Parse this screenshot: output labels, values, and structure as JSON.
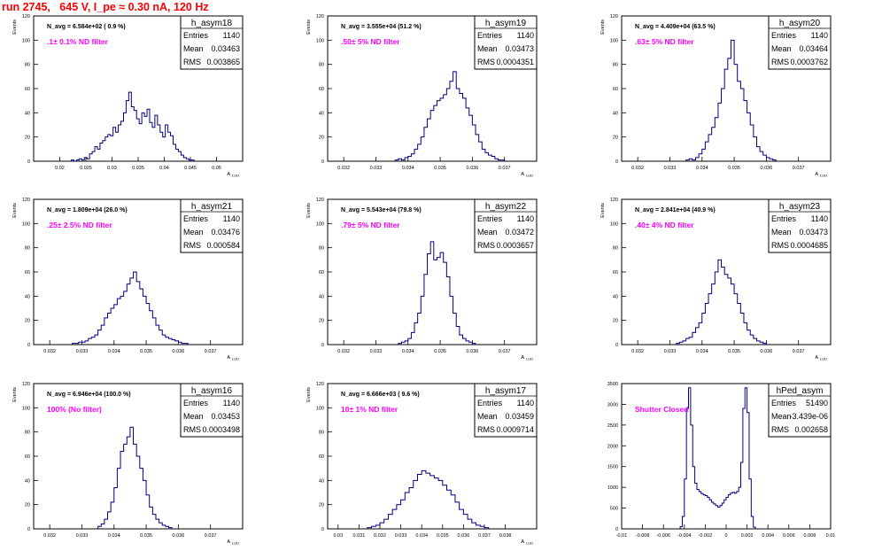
{
  "title": "run 2745,   645 V, I_pe ≈ 0.30 nA, 120 Hz",
  "stat_labels": {
    "entries": "Entries",
    "mean": "Mean",
    "rms": "RMS"
  },
  "chart_data": [
    {
      "type": "histogram",
      "name": "h_asym18",
      "navg": "N_avg = 6.584e+02 ( 0.9 %)",
      "filter": ".1± 0.1% ND filter",
      "entries": "1140",
      "mean": "0.03463",
      "rms": "0.003865",
      "xlim": [
        0.015,
        0.055
      ],
      "ylim": [
        0,
        120
      ],
      "xticks": [
        0.02,
        0.025,
        0.03,
        0.035,
        0.04,
        0.045,
        0.05
      ],
      "xticklabels": [
        "0.02",
        "0.025",
        "0.03",
        "0.035",
        "0.04",
        "0.045",
        "0.05"
      ],
      "yticks": [
        0,
        20,
        40,
        60,
        80,
        100,
        120
      ],
      "xlabel": "A_LUD",
      "ylabel": "Events",
      "x_start": 0.0222,
      "bin_width": 0.0005,
      "counts": [
        1,
        0,
        1,
        2,
        1,
        3,
        2,
        6,
        8,
        12,
        10,
        15,
        17,
        20,
        22,
        21,
        28,
        24,
        30,
        33,
        40,
        50,
        57,
        45,
        42,
        35,
        31,
        40,
        37,
        43,
        32,
        28,
        38,
        30,
        24,
        20,
        30,
        24,
        21,
        14,
        10,
        8,
        5,
        3,
        2,
        1,
        1
      ]
    },
    {
      "type": "histogram",
      "name": "h_asym19",
      "navg": "N_avg = 3.555e+04 (51.2 %)",
      "filter": ".50± 5% ND filter",
      "entries": "1140",
      "mean": "0.03473",
      "rms": "0.0004351",
      "xlim": [
        0.0315,
        0.038
      ],
      "ylim": [
        0,
        120
      ],
      "xticks": [
        0.032,
        0.033,
        0.034,
        0.035,
        0.036,
        0.037
      ],
      "xticklabels": [
        "0.032",
        "0.033",
        "0.034",
        "0.035",
        "0.036",
        "0.037"
      ],
      "yticks": [
        0,
        20,
        40,
        60,
        80,
        100,
        120
      ],
      "xlabel": "A_LUD",
      "ylabel": "Events",
      "x_start": 0.0336,
      "bin_width": 0.0001,
      "counts": [
        1,
        2,
        1,
        3,
        4,
        6,
        10,
        14,
        20,
        28,
        35,
        42,
        46,
        50,
        52,
        55,
        60,
        66,
        74,
        60,
        56,
        52,
        44,
        38,
        30,
        22,
        16,
        10,
        7,
        5,
        4,
        2,
        1,
        1
      ]
    },
    {
      "type": "histogram",
      "name": "h_asym20",
      "navg": "N_avg = 4.409e+04 (63.5 %)",
      "filter": ".63± 5% ND filter",
      "entries": "1140",
      "mean": "0.03464",
      "rms": "0.0003762",
      "xlim": [
        0.0315,
        0.038
      ],
      "ylim": [
        0,
        120
      ],
      "xticks": [
        0.032,
        0.033,
        0.034,
        0.035,
        0.036,
        0.037
      ],
      "xticklabels": [
        "0.032",
        "0.033",
        "0.034",
        "0.035",
        "0.036",
        "0.037"
      ],
      "yticks": [
        0,
        20,
        40,
        60,
        80,
        100,
        120
      ],
      "xlabel": "A_LUD",
      "ylabel": "Events",
      "x_start": 0.0335,
      "bin_width": 0.0001,
      "counts": [
        1,
        2,
        1,
        3,
        6,
        10,
        16,
        22,
        28,
        36,
        48,
        60,
        76,
        85,
        100,
        80,
        66,
        60,
        50,
        40,
        30,
        20,
        12,
        8,
        5,
        3,
        2,
        1
      ]
    },
    {
      "type": "histogram",
      "name": "h_asym21",
      "navg": "N_avg = 1.809e+04 (26.0 %)",
      "filter": ".25± 2.5% ND filter",
      "entries": "1140",
      "mean": "0.03476",
      "rms": "0.000584",
      "xlim": [
        0.0315,
        0.038
      ],
      "ylim": [
        0,
        120
      ],
      "xticks": [
        0.032,
        0.033,
        0.034,
        0.035,
        0.036,
        0.037
      ],
      "xticklabels": [
        "0.032",
        "0.033",
        "0.034",
        "0.035",
        "0.036",
        "0.037"
      ],
      "yticks": [
        0,
        20,
        40,
        60,
        80,
        100,
        120
      ],
      "xlabel": "A_LUD",
      "ylabel": "Events",
      "x_start": 0.0327,
      "bin_width": 0.0001,
      "counts": [
        1,
        1,
        2,
        2,
        3,
        5,
        6,
        8,
        12,
        16,
        22,
        26,
        30,
        33,
        38,
        40,
        44,
        50,
        55,
        60,
        52,
        46,
        40,
        34,
        28,
        22,
        16,
        12,
        8,
        6,
        5,
        4,
        3,
        2,
        1,
        1
      ]
    },
    {
      "type": "histogram",
      "name": "h_asym22",
      "navg": "N_avg = 5.543e+04 (79.8 %)",
      "filter": ".79± 5% ND filter",
      "entries": "1140",
      "mean": "0.03472",
      "rms": "0.0003657",
      "xlim": [
        0.0315,
        0.038
      ],
      "ylim": [
        0,
        120
      ],
      "xticks": [
        0.032,
        0.033,
        0.034,
        0.035,
        0.036,
        0.037
      ],
      "xticklabels": [
        "0.032",
        "0.033",
        "0.034",
        "0.035",
        "0.036",
        "0.037"
      ],
      "yticks": [
        0,
        20,
        40,
        60,
        80,
        100,
        120
      ],
      "xlabel": "A_LUD",
      "ylabel": "Events",
      "x_start": 0.0337,
      "bin_width": 0.0001,
      "counts": [
        1,
        2,
        3,
        5,
        10,
        18,
        26,
        40,
        58,
        75,
        85,
        70,
        72,
        76,
        68,
        56,
        40,
        26,
        15,
        8,
        5,
        3,
        2,
        1
      ]
    },
    {
      "type": "histogram",
      "name": "h_asym23",
      "navg": "N_avg = 2.841e+04 (40.9 %)",
      "filter": ".40± 4% ND filter",
      "entries": "1140",
      "mean": "0.03473",
      "rms": "0.0004685",
      "xlim": [
        0.0315,
        0.038
      ],
      "ylim": [
        0,
        120
      ],
      "xticks": [
        0.032,
        0.033,
        0.034,
        0.035,
        0.036,
        0.037
      ],
      "xticklabels": [
        "0.032",
        "0.033",
        "0.034",
        "0.035",
        "0.036",
        "0.037"
      ],
      "yticks": [
        0,
        20,
        40,
        60,
        80,
        100,
        120
      ],
      "xlabel": "A_LUD",
      "ylabel": "Events",
      "x_start": 0.0332,
      "bin_width": 0.0001,
      "counts": [
        1,
        2,
        3,
        5,
        6,
        10,
        14,
        18,
        26,
        34,
        42,
        50,
        60,
        70,
        64,
        58,
        55,
        50,
        42,
        34,
        26,
        18,
        12,
        8,
        5,
        3,
        2,
        1
      ]
    },
    {
      "type": "histogram",
      "name": "h_asym16",
      "navg": "N_avg = 6.946e+04 (100.0 %)",
      "filter": "100% (No filter)",
      "entries": "1140",
      "mean": "0.03453",
      "rms": "0.0003498",
      "xlim": [
        0.0315,
        0.038
      ],
      "ylim": [
        0,
        120
      ],
      "xticks": [
        0.032,
        0.033,
        0.034,
        0.035,
        0.036,
        0.037
      ],
      "xticklabels": [
        "0.032",
        "0.033",
        "0.034",
        "0.035",
        "0.036",
        "0.037"
      ],
      "yticks": [
        0,
        20,
        40,
        60,
        80,
        100,
        120
      ],
      "xlabel": "A_LUD",
      "ylabel": "Events",
      "x_start": 0.0335,
      "bin_width": 0.0001,
      "counts": [
        2,
        4,
        8,
        14,
        22,
        34,
        50,
        64,
        70,
        76,
        84,
        70,
        60,
        50,
        40,
        28,
        18,
        12,
        8,
        5,
        3,
        2,
        1
      ]
    },
    {
      "type": "histogram",
      "name": "h_asym17",
      "navg": "N_avg = 6.666e+03 ( 9.6 %)",
      "filter": "10± 1% ND filter",
      "entries": "1140",
      "mean": "0.03459",
      "rms": "0.0009714",
      "xlim": [
        0.0295,
        0.0395
      ],
      "ylim": [
        0,
        120
      ],
      "xticks": [
        0.03,
        0.031,
        0.032,
        0.033,
        0.034,
        0.035,
        0.036,
        0.037,
        0.038
      ],
      "xticklabels": [
        "0.03",
        "0.031",
        "0.032",
        "0.033",
        "0.034",
        "0.035",
        "0.036",
        "0.037",
        "0.038"
      ],
      "yticks": [
        0,
        20,
        40,
        60,
        80,
        100,
        120
      ],
      "xlabel": "A_LUD",
      "ylabel": "Events",
      "x_start": 0.0314,
      "bin_width": 0.0002,
      "counts": [
        1,
        2,
        3,
        5,
        8,
        12,
        16,
        20,
        24,
        30,
        34,
        40,
        45,
        48,
        46,
        44,
        42,
        40,
        36,
        32,
        28,
        22,
        16,
        12,
        8,
        5,
        3,
        2,
        1
      ]
    },
    {
      "type": "histogram",
      "name": "hPed_asym",
      "navg": "",
      "filter": "Shutter Closed",
      "entries": "51490",
      "mean": "-3.439e-06",
      "rms": "0.002658",
      "xlim": [
        -0.01,
        0.01
      ],
      "ylim": [
        0,
        3500
      ],
      "xticks": [
        -0.01,
        -0.008,
        -0.006,
        -0.004,
        -0.002,
        0,
        0.002,
        0.004,
        0.006,
        0.008,
        0.01
      ],
      "xticklabels": [
        "-0.01",
        "-0.008",
        "-0.006",
        "-0.004",
        "-0.002",
        "0",
        "0.002",
        "0.004",
        "0.006",
        "0.008",
        "0.01"
      ],
      "yticks": [
        0,
        500,
        1000,
        1500,
        2000,
        2500,
        3000,
        3500
      ],
      "xlabel": "",
      "ylabel": "",
      "x_start": -0.0044,
      "bin_width": 0.0002,
      "counts": [
        50,
        300,
        1200,
        2900,
        3400,
        2500,
        1500,
        1100,
        950,
        900,
        850,
        820,
        800,
        760,
        700,
        640,
        600,
        560,
        520,
        560,
        620,
        700,
        760,
        820,
        860,
        880,
        860,
        900,
        1000,
        1600,
        2900,
        3400,
        2800,
        1200,
        300,
        40
      ]
    }
  ]
}
